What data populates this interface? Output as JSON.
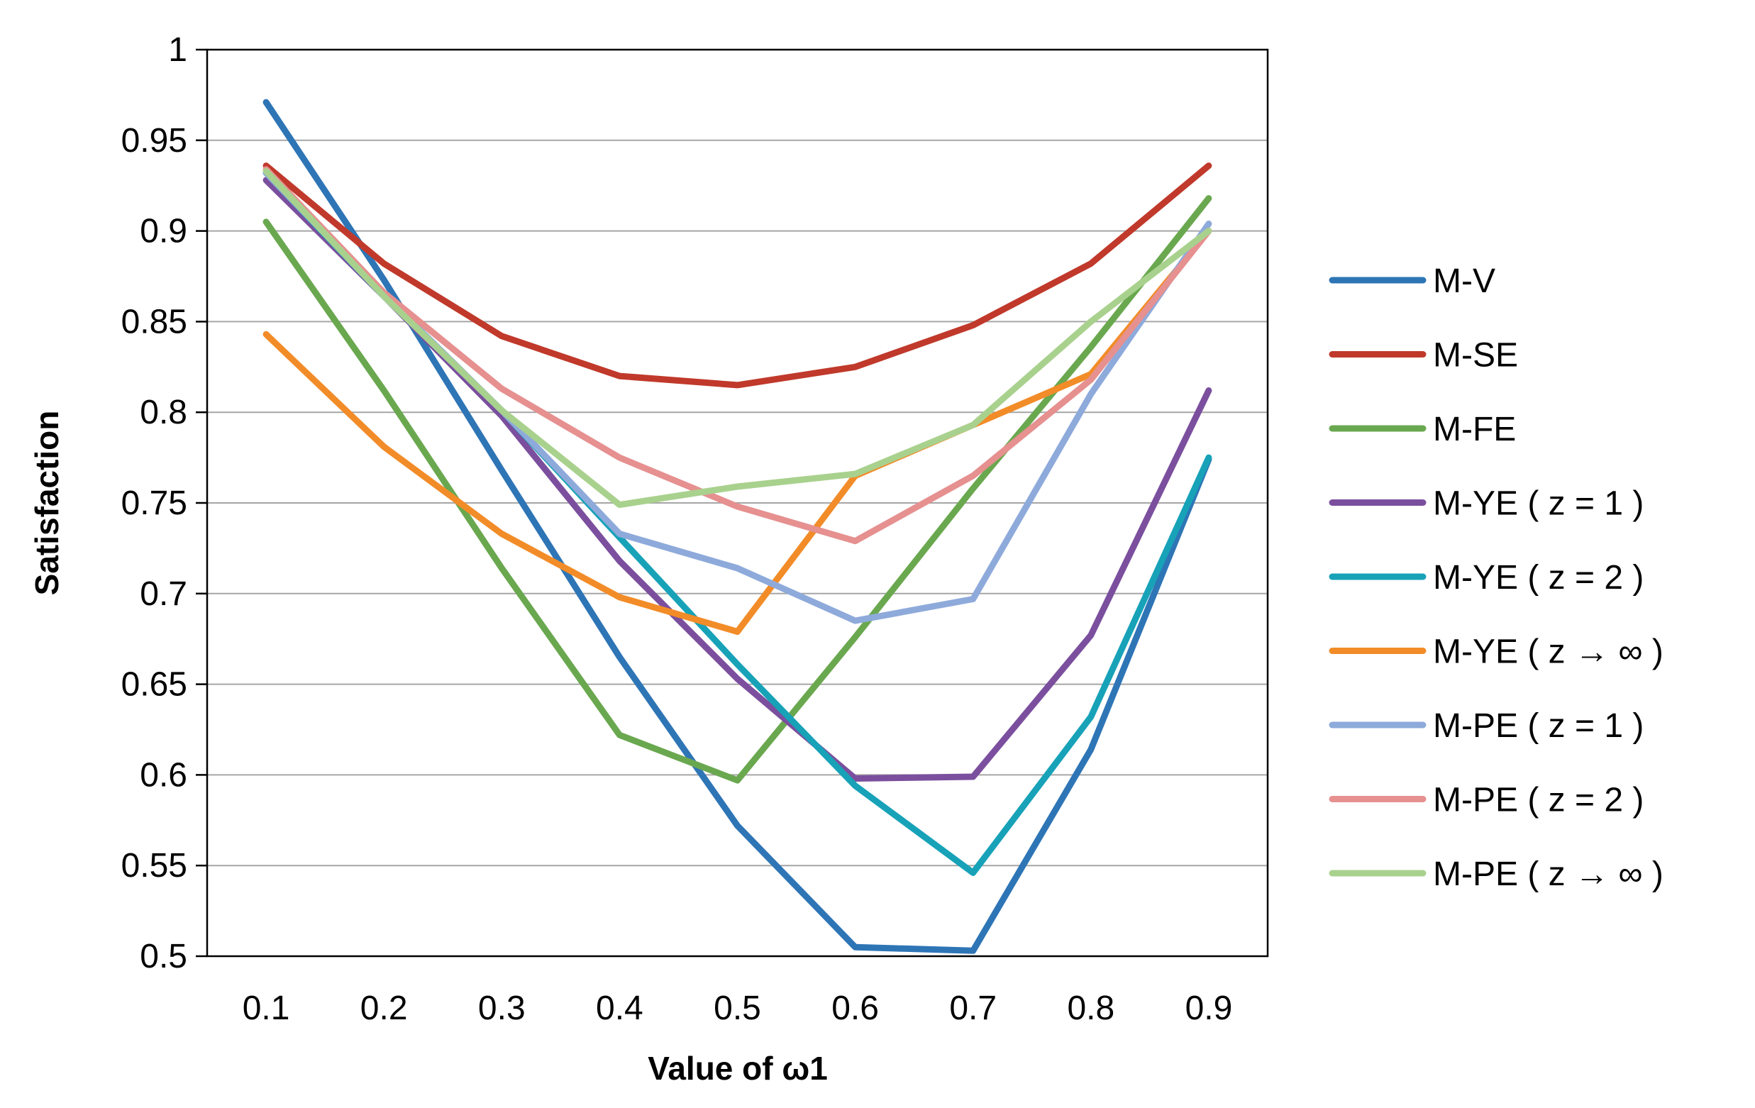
{
  "chart_data": {
    "type": "line",
    "title": "",
    "xlabel": "Value of ω1",
    "ylabel": "Satisfaction",
    "categories": [
      "0.1",
      "0.2",
      "0.3",
      "0.4",
      "0.5",
      "0.6",
      "0.7",
      "0.8",
      "0.9"
    ],
    "ylim": [
      0.5,
      1
    ],
    "yticks": [
      "0.5",
      "0.55",
      "0.6",
      "0.65",
      "0.7",
      "0.75",
      "0.8",
      "0.85",
      "0.9",
      "0.95",
      "1"
    ],
    "grid": true,
    "legend_position": "right",
    "series": [
      {
        "name": "M-V",
        "color": "#2e75b6",
        "values": [
          0.971,
          0.873,
          0.768,
          0.665,
          0.572,
          0.505,
          0.503,
          0.614,
          0.774
        ]
      },
      {
        "name": "M-SE",
        "color": "#c0392b",
        "values": [
          0.936,
          0.882,
          0.842,
          0.82,
          0.815,
          0.825,
          0.848,
          0.882,
          0.936
        ]
      },
      {
        "name": "M-FE",
        "color": "#6aa84f",
        "values": [
          0.905,
          0.812,
          0.714,
          0.622,
          0.597,
          0.676,
          0.758,
          0.836,
          0.918
        ]
      },
      {
        "name": "M-YE ( z = 1 )",
        "color": "#7b4f9e",
        "values": [
          0.928,
          0.864,
          0.798,
          0.718,
          0.653,
          0.598,
          0.599,
          0.677,
          0.812
        ]
      },
      {
        "name": "M-YE ( z = 2 )",
        "color": "#17a2b8",
        "values": [
          0.932,
          0.864,
          0.801,
          0.731,
          0.661,
          0.594,
          0.546,
          0.632,
          0.775
        ]
      },
      {
        "name": "M-YE ( z → ∞ )",
        "color": "#f28c28",
        "values": [
          0.843,
          0.781,
          0.733,
          0.698,
          0.679,
          0.765,
          0.793,
          0.821,
          0.9
        ]
      },
      {
        "name": "M-PE ( z = 1 )",
        "color": "#8eaadb",
        "values": [
          0.932,
          0.865,
          0.801,
          0.733,
          0.714,
          0.685,
          0.697,
          0.81,
          0.904
        ]
      },
      {
        "name": "M-PE ( z = 2 )",
        "color": "#e69090",
        "values": [
          0.934,
          0.866,
          0.813,
          0.775,
          0.748,
          0.729,
          0.765,
          0.818,
          0.9
        ]
      },
      {
        "name": "M-PE ( z → ∞ )",
        "color": "#a9d18e",
        "values": [
          0.933,
          0.864,
          0.801,
          0.749,
          0.759,
          0.766,
          0.793,
          0.85,
          0.9
        ]
      }
    ]
  }
}
